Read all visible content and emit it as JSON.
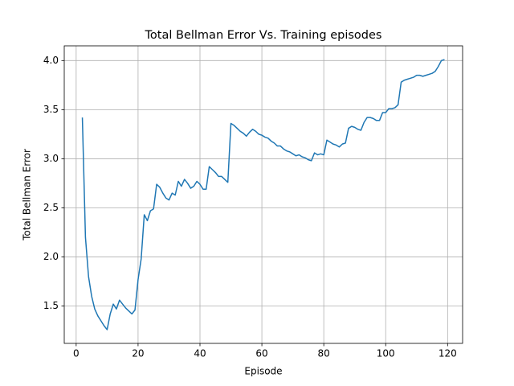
{
  "chart_data": {
    "type": "line",
    "title": "Total Bellman Error Vs. Training episodes",
    "x_label": "Episode",
    "y_label": "Total Bellman Error",
    "x": [
      2,
      3,
      4,
      5,
      6,
      7,
      8,
      9,
      10,
      11,
      12,
      13,
      14,
      15,
      16,
      17,
      18,
      19,
      20,
      21,
      22,
      23,
      24,
      25,
      26,
      27,
      28,
      29,
      30,
      31,
      32,
      33,
      34,
      35,
      36,
      37,
      38,
      39,
      40,
      41,
      42,
      43,
      44,
      45,
      46,
      47,
      48,
      49,
      50,
      51,
      52,
      53,
      54,
      55,
      56,
      57,
      58,
      59,
      60,
      61,
      62,
      63,
      64,
      65,
      66,
      67,
      68,
      69,
      70,
      71,
      72,
      73,
      74,
      75,
      76,
      77,
      78,
      79,
      80,
      81,
      82,
      83,
      84,
      85,
      86,
      87,
      88,
      89,
      90,
      91,
      92,
      93,
      94,
      95,
      96,
      97,
      98,
      99,
      100,
      101,
      102,
      103,
      104,
      105,
      106,
      107,
      108,
      109,
      110,
      111,
      112,
      113,
      114,
      115,
      116,
      117,
      118,
      119
    ],
    "series": [
      {
        "name": "Total Bellman Error",
        "color": "#1f77b4",
        "values": [
          3.42,
          2.2,
          1.8,
          1.6,
          1.47,
          1.4,
          1.35,
          1.3,
          1.26,
          1.42,
          1.52,
          1.47,
          1.56,
          1.52,
          1.48,
          1.45,
          1.42,
          1.46,
          1.77,
          1.98,
          2.43,
          2.37,
          2.47,
          2.49,
          2.74,
          2.71,
          2.65,
          2.6,
          2.58,
          2.65,
          2.63,
          2.77,
          2.72,
          2.79,
          2.75,
          2.7,
          2.72,
          2.77,
          2.74,
          2.69,
          2.69,
          2.92,
          2.89,
          2.86,
          2.82,
          2.82,
          2.79,
          2.76,
          3.36,
          3.34,
          3.31,
          3.28,
          3.26,
          3.23,
          3.27,
          3.3,
          3.28,
          3.25,
          3.24,
          3.22,
          3.21,
          3.18,
          3.16,
          3.13,
          3.13,
          3.1,
          3.08,
          3.07,
          3.05,
          3.03,
          3.04,
          3.02,
          3.01,
          2.99,
          2.98,
          3.06,
          3.04,
          3.05,
          3.04,
          3.19,
          3.17,
          3.15,
          3.14,
          3.12,
          3.15,
          3.16,
          3.31,
          3.33,
          3.32,
          3.3,
          3.29,
          3.37,
          3.42,
          3.42,
          3.41,
          3.39,
          3.39,
          3.47,
          3.47,
          3.51,
          3.51,
          3.52,
          3.55,
          3.78,
          3.8,
          3.81,
          3.82,
          3.83,
          3.85,
          3.85,
          3.84,
          3.85,
          3.86,
          3.87,
          3.89,
          3.94,
          4.0,
          4.01
        ]
      }
    ],
    "xlim": [
      -3.85,
      124.85
    ],
    "ylim": [
      1.12,
      4.15
    ],
    "xticks": [
      0,
      20,
      40,
      60,
      80,
      100,
      120
    ],
    "yticks": [
      1.5,
      {
        "value": 2,
        "label": "2.0"
      },
      2.5,
      {
        "value": 3,
        "label": "3.0"
      },
      3.5,
      {
        "value": 4,
        "label": "4.0"
      }
    ],
    "grid": true
  }
}
